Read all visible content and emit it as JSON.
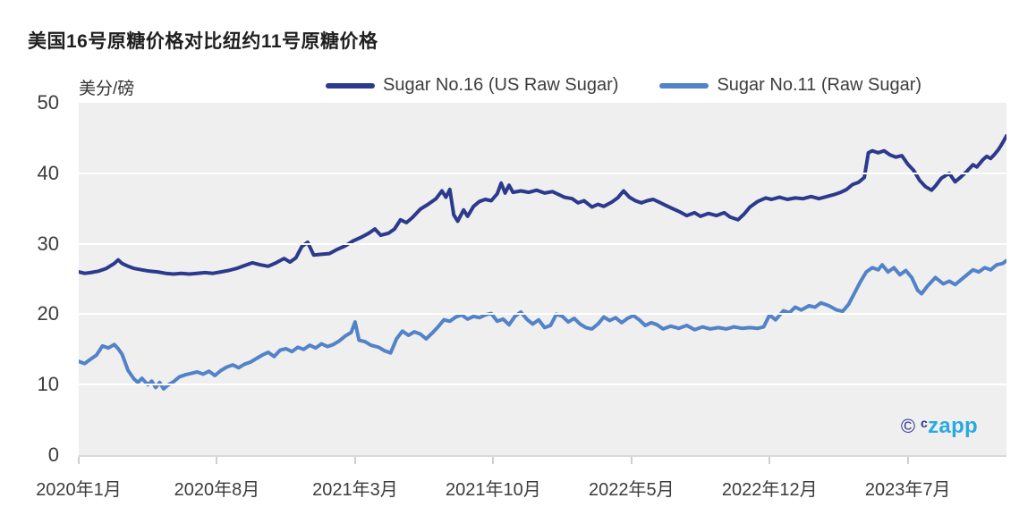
{
  "title": "美国16号原糖价格对比纽约11号原糖价格",
  "unit_label": "美分/磅",
  "colors": {
    "no16_line": "#2c3a8d",
    "no11_line": "#5282c8",
    "plot_background": "#efefef",
    "gridline": "#ffffff",
    "axis_text": "#3c3c3c",
    "watermark_dark": "#2e3192",
    "watermark_light": "#29a9e1"
  },
  "legend": [
    {
      "label": "Sugar No.16 (US Raw Sugar)",
      "color": "#2c3a8d"
    },
    {
      "label": "Sugar No.11 (Raw Sugar)",
      "color": "#5282c8"
    }
  ],
  "watermark": {
    "copyright_symbol": "©",
    "prefix": "c",
    "name": "zapp"
  },
  "chart_data": {
    "type": "line",
    "title": "美国16号原糖价格对比纽约11号原糖价格",
    "xlabel": "",
    "ylabel": "美分/磅",
    "ylim": [
      0,
      50
    ],
    "yticks": [
      0,
      10,
      20,
      30,
      40,
      50
    ],
    "x_unit": "months since 2020-01",
    "xlim": [
      0,
      47
    ],
    "xticks": [
      {
        "m": 0,
        "label": "2020年1月"
      },
      {
        "m": 7,
        "label": "2020年8月"
      },
      {
        "m": 14,
        "label": "2021年3月"
      },
      {
        "m": 21,
        "label": "2021年10月"
      },
      {
        "m": 28,
        "label": "2022年5月"
      },
      {
        "m": 35,
        "label": "2022年12月"
      },
      {
        "m": 42,
        "label": "2023年7月"
      }
    ],
    "grid": "horizontal white lines",
    "legend_position": "top",
    "series": [
      {
        "name": "Sugar No.16 (US Raw Sugar)",
        "color": "#2c3a8d",
        "points": [
          [
            0,
            26.0
          ],
          [
            0.3,
            25.8
          ],
          [
            0.6,
            25.9
          ],
          [
            1,
            26.1
          ],
          [
            1.4,
            26.5
          ],
          [
            1.8,
            27.2
          ],
          [
            2,
            27.7
          ],
          [
            2.2,
            27.2
          ],
          [
            2.5,
            26.8
          ],
          [
            2.8,
            26.5
          ],
          [
            3.2,
            26.3
          ],
          [
            3.6,
            26.1
          ],
          [
            4,
            26.0
          ],
          [
            4.4,
            25.8
          ],
          [
            4.8,
            25.7
          ],
          [
            5.2,
            25.8
          ],
          [
            5.6,
            25.7
          ],
          [
            6,
            25.8
          ],
          [
            6.4,
            25.9
          ],
          [
            6.8,
            25.8
          ],
          [
            7.2,
            26.0
          ],
          [
            7.6,
            26.2
          ],
          [
            8,
            26.5
          ],
          [
            8.4,
            26.9
          ],
          [
            8.8,
            27.3
          ],
          [
            9.2,
            27.0
          ],
          [
            9.6,
            26.8
          ],
          [
            10,
            27.3
          ],
          [
            10.4,
            27.9
          ],
          [
            10.7,
            27.4
          ],
          [
            11,
            28.0
          ],
          [
            11.3,
            29.6
          ],
          [
            11.6,
            30.2
          ],
          [
            11.9,
            28.4
          ],
          [
            12.3,
            28.5
          ],
          [
            12.7,
            28.6
          ],
          [
            13.1,
            29.2
          ],
          [
            13.5,
            29.7
          ],
          [
            13.9,
            30.4
          ],
          [
            14.3,
            30.9
          ],
          [
            14.7,
            31.5
          ],
          [
            15,
            32.1
          ],
          [
            15.3,
            31.2
          ],
          [
            15.7,
            31.5
          ],
          [
            16,
            32.1
          ],
          [
            16.3,
            33.4
          ],
          [
            16.6,
            33.0
          ],
          [
            16.9,
            33.7
          ],
          [
            17.3,
            34.9
          ],
          [
            17.7,
            35.6
          ],
          [
            18.1,
            36.4
          ],
          [
            18.4,
            37.5
          ],
          [
            18.6,
            36.6
          ],
          [
            18.8,
            37.7
          ],
          [
            19,
            34.1
          ],
          [
            19.2,
            33.2
          ],
          [
            19.5,
            34.8
          ],
          [
            19.7,
            33.9
          ],
          [
            20,
            35.3
          ],
          [
            20.3,
            36.0
          ],
          [
            20.6,
            36.3
          ],
          [
            20.9,
            36.1
          ],
          [
            21.2,
            37.1
          ],
          [
            21.4,
            38.6
          ],
          [
            21.6,
            37.2
          ],
          [
            21.8,
            38.3
          ],
          [
            22,
            37.3
          ],
          [
            22.4,
            37.5
          ],
          [
            22.8,
            37.3
          ],
          [
            23.2,
            37.6
          ],
          [
            23.6,
            37.2
          ],
          [
            24,
            37.4
          ],
          [
            24.3,
            37.0
          ],
          [
            24.6,
            36.6
          ],
          [
            25,
            36.4
          ],
          [
            25.3,
            35.8
          ],
          [
            25.6,
            36.1
          ],
          [
            26,
            35.2
          ],
          [
            26.3,
            35.6
          ],
          [
            26.6,
            35.3
          ],
          [
            27,
            35.9
          ],
          [
            27.3,
            36.5
          ],
          [
            27.6,
            37.5
          ],
          [
            27.9,
            36.6
          ],
          [
            28.2,
            36.1
          ],
          [
            28.5,
            35.8
          ],
          [
            28.8,
            36.1
          ],
          [
            29.1,
            36.3
          ],
          [
            29.4,
            35.9
          ],
          [
            29.7,
            35.5
          ],
          [
            30,
            35.1
          ],
          [
            30.4,
            34.6
          ],
          [
            30.8,
            34.0
          ],
          [
            31.2,
            34.4
          ],
          [
            31.5,
            33.9
          ],
          [
            31.9,
            34.3
          ],
          [
            32.3,
            34.0
          ],
          [
            32.7,
            34.4
          ],
          [
            33,
            33.8
          ],
          [
            33.4,
            33.4
          ],
          [
            33.7,
            34.2
          ],
          [
            34,
            35.2
          ],
          [
            34.4,
            36.0
          ],
          [
            34.8,
            36.5
          ],
          [
            35.1,
            36.3
          ],
          [
            35.5,
            36.6
          ],
          [
            35.9,
            36.3
          ],
          [
            36.3,
            36.5
          ],
          [
            36.7,
            36.4
          ],
          [
            37.1,
            36.7
          ],
          [
            37.5,
            36.4
          ],
          [
            37.9,
            36.7
          ],
          [
            38.3,
            37.0
          ],
          [
            38.6,
            37.3
          ],
          [
            38.9,
            37.7
          ],
          [
            39.2,
            38.4
          ],
          [
            39.5,
            38.7
          ],
          [
            39.8,
            39.4
          ],
          [
            40,
            42.9
          ],
          [
            40.2,
            43.2
          ],
          [
            40.5,
            42.9
          ],
          [
            40.8,
            43.2
          ],
          [
            41.1,
            42.6
          ],
          [
            41.4,
            42.3
          ],
          [
            41.7,
            42.5
          ],
          [
            42,
            41.3
          ],
          [
            42.3,
            40.4
          ],
          [
            42.6,
            39.0
          ],
          [
            42.9,
            38.1
          ],
          [
            43.2,
            37.6
          ],
          [
            43.4,
            38.2
          ],
          [
            43.7,
            39.3
          ],
          [
            44.1,
            40.0
          ],
          [
            44.4,
            38.8
          ],
          [
            44.7,
            39.5
          ],
          [
            45,
            40.3
          ],
          [
            45.3,
            41.2
          ],
          [
            45.5,
            40.9
          ],
          [
            45.8,
            41.9
          ],
          [
            46,
            42.4
          ],
          [
            46.2,
            42.1
          ],
          [
            46.4,
            42.7
          ],
          [
            46.6,
            43.4
          ],
          [
            46.8,
            44.3
          ],
          [
            47,
            45.3
          ]
        ]
      },
      {
        "name": "Sugar No.11 (Raw Sugar)",
        "color": "#5282c8",
        "points": [
          [
            0,
            13.3
          ],
          [
            0.3,
            13.0
          ],
          [
            0.6,
            13.6
          ],
          [
            0.9,
            14.2
          ],
          [
            1.2,
            15.5
          ],
          [
            1.5,
            15.2
          ],
          [
            1.8,
            15.7
          ],
          [
            2,
            15.1
          ],
          [
            2.2,
            14.3
          ],
          [
            2.5,
            12.0
          ],
          [
            2.8,
            10.8
          ],
          [
            3,
            10.3
          ],
          [
            3.2,
            10.9
          ],
          [
            3.5,
            10.0
          ],
          [
            3.7,
            10.5
          ],
          [
            3.9,
            9.6
          ],
          [
            4.1,
            10.3
          ],
          [
            4.3,
            9.4
          ],
          [
            4.5,
            9.9
          ],
          [
            4.8,
            10.4
          ],
          [
            5.1,
            11.1
          ],
          [
            5.4,
            11.4
          ],
          [
            5.7,
            11.6
          ],
          [
            6,
            11.8
          ],
          [
            6.3,
            11.5
          ],
          [
            6.6,
            11.9
          ],
          [
            6.9,
            11.3
          ],
          [
            7.2,
            12.0
          ],
          [
            7.5,
            12.5
          ],
          [
            7.8,
            12.8
          ],
          [
            8.1,
            12.4
          ],
          [
            8.4,
            12.9
          ],
          [
            8.7,
            13.2
          ],
          [
            9,
            13.7
          ],
          [
            9.3,
            14.2
          ],
          [
            9.6,
            14.6
          ],
          [
            9.9,
            14.0
          ],
          [
            10.2,
            14.9
          ],
          [
            10.5,
            15.1
          ],
          [
            10.8,
            14.7
          ],
          [
            11.1,
            15.3
          ],
          [
            11.4,
            15.0
          ],
          [
            11.7,
            15.6
          ],
          [
            12,
            15.2
          ],
          [
            12.3,
            15.8
          ],
          [
            12.6,
            15.4
          ],
          [
            12.9,
            15.7
          ],
          [
            13.2,
            16.2
          ],
          [
            13.5,
            16.9
          ],
          [
            13.8,
            17.4
          ],
          [
            14,
            18.9
          ],
          [
            14.2,
            16.3
          ],
          [
            14.5,
            16.1
          ],
          [
            14.8,
            15.6
          ],
          [
            15.2,
            15.3
          ],
          [
            15.5,
            14.8
          ],
          [
            15.8,
            14.5
          ],
          [
            16.1,
            16.5
          ],
          [
            16.4,
            17.6
          ],
          [
            16.7,
            17.0
          ],
          [
            17,
            17.5
          ],
          [
            17.3,
            17.2
          ],
          [
            17.6,
            16.5
          ],
          [
            17.9,
            17.3
          ],
          [
            18.2,
            18.2
          ],
          [
            18.5,
            19.2
          ],
          [
            18.8,
            19.0
          ],
          [
            19.1,
            19.6
          ],
          [
            19.4,
            19.9
          ],
          [
            19.7,
            19.3
          ],
          [
            20,
            19.7
          ],
          [
            20.3,
            19.5
          ],
          [
            20.6,
            19.9
          ],
          [
            20.9,
            20.1
          ],
          [
            21.2,
            19.0
          ],
          [
            21.5,
            19.3
          ],
          [
            21.8,
            18.5
          ],
          [
            22.1,
            19.7
          ],
          [
            22.4,
            20.3
          ],
          [
            22.7,
            19.3
          ],
          [
            23,
            18.6
          ],
          [
            23.3,
            19.2
          ],
          [
            23.6,
            18.1
          ],
          [
            23.9,
            18.4
          ],
          [
            24.2,
            20.0
          ],
          [
            24.5,
            19.7
          ],
          [
            24.8,
            18.9
          ],
          [
            25.1,
            19.4
          ],
          [
            25.4,
            18.6
          ],
          [
            25.7,
            18.1
          ],
          [
            26,
            17.9
          ],
          [
            26.3,
            18.6
          ],
          [
            26.6,
            19.6
          ],
          [
            26.9,
            19.1
          ],
          [
            27.2,
            19.5
          ],
          [
            27.5,
            18.8
          ],
          [
            27.8,
            19.4
          ],
          [
            28.1,
            19.8
          ],
          [
            28.4,
            19.2
          ],
          [
            28.7,
            18.4
          ],
          [
            29,
            18.8
          ],
          [
            29.3,
            18.5
          ],
          [
            29.6,
            17.9
          ],
          [
            30,
            18.3
          ],
          [
            30.4,
            18.0
          ],
          [
            30.8,
            18.4
          ],
          [
            31.2,
            17.8
          ],
          [
            31.6,
            18.2
          ],
          [
            32,
            17.9
          ],
          [
            32.4,
            18.1
          ],
          [
            32.8,
            17.9
          ],
          [
            33.2,
            18.2
          ],
          [
            33.6,
            18.0
          ],
          [
            34,
            18.1
          ],
          [
            34.4,
            18.0
          ],
          [
            34.7,
            18.2
          ],
          [
            35,
            19.9
          ],
          [
            35.3,
            19.2
          ],
          [
            35.7,
            20.5
          ],
          [
            36,
            20.2
          ],
          [
            36.3,
            21.0
          ],
          [
            36.6,
            20.6
          ],
          [
            37,
            21.2
          ],
          [
            37.3,
            21.0
          ],
          [
            37.6,
            21.6
          ],
          [
            38,
            21.2
          ],
          [
            38.4,
            20.6
          ],
          [
            38.7,
            20.4
          ],
          [
            39,
            21.4
          ],
          [
            39.3,
            23.0
          ],
          [
            39.6,
            24.6
          ],
          [
            39.9,
            26.0
          ],
          [
            40.2,
            26.6
          ],
          [
            40.5,
            26.3
          ],
          [
            40.7,
            27.0
          ],
          [
            41,
            26.0
          ],
          [
            41.3,
            26.6
          ],
          [
            41.6,
            25.6
          ],
          [
            41.9,
            26.2
          ],
          [
            42.2,
            25.2
          ],
          [
            42.5,
            23.4
          ],
          [
            42.7,
            22.9
          ],
          [
            43,
            24.0
          ],
          [
            43.4,
            25.2
          ],
          [
            43.8,
            24.3
          ],
          [
            44.1,
            24.7
          ],
          [
            44.4,
            24.2
          ],
          [
            44.7,
            24.9
          ],
          [
            45,
            25.6
          ],
          [
            45.3,
            26.3
          ],
          [
            45.6,
            26.0
          ],
          [
            45.9,
            26.6
          ],
          [
            46.2,
            26.3
          ],
          [
            46.5,
            27.0
          ],
          [
            46.8,
            27.2
          ],
          [
            47,
            27.6
          ]
        ]
      }
    ]
  }
}
